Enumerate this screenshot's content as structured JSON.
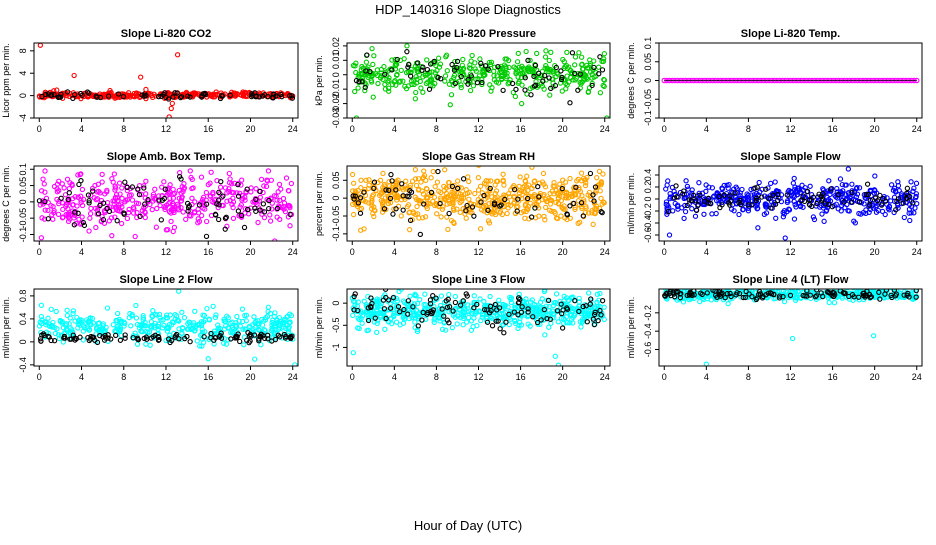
{
  "figure": {
    "title": "HDP_140316  Slope Diagnostics",
    "xlabel": "Hour of Day (UTC)"
  },
  "chart_data": [
    {
      "type": "scatter",
      "title": "Slope Li-820 CO2",
      "ylabel": "Licor ppm per min.",
      "color": "#ff0000",
      "xlim": [
        -0.5,
        24.5
      ],
      "ylim": [
        -4,
        9.4
      ],
      "xticks": [
        0,
        4,
        8,
        12,
        16,
        20,
        24
      ],
      "yticks": [
        -4,
        0,
        4,
        8
      ],
      "base": 0.1,
      "spread": 0.25,
      "black_base": 0,
      "black_spread": 0.3,
      "seed": 11,
      "n": 330,
      "nb": 70,
      "extra": [
        [
          0.1,
          9
        ],
        [
          3.3,
          3.6
        ],
        [
          9.6,
          3.3
        ],
        [
          13.1,
          7.3
        ],
        [
          10.1,
          1.1
        ],
        [
          12.5,
          -2.3
        ],
        [
          12.3,
          -3.8
        ],
        [
          12.6,
          -1.4
        ],
        [
          6.7,
          0.9
        ]
      ]
    },
    {
      "type": "scatter",
      "title": "Slope Li-820 Pressure",
      "ylabel": "kPa per min.",
      "color": "#00cc00",
      "xlim": [
        -0.5,
        24.5
      ],
      "ylim": [
        -0.03,
        0.022
      ],
      "xticks": [
        0,
        4,
        8,
        12,
        16,
        20,
        24
      ],
      "yticks": [
        -0.03,
        -0.02,
        -0.01,
        0,
        0.01,
        0.02
      ],
      "base": 0.001,
      "spread": 0.006,
      "black_base": 0,
      "black_spread": 0.007,
      "seed": 23,
      "n": 420,
      "nb": 70,
      "extra": [
        [
          0.4,
          -0.03
        ],
        [
          24.2,
          -0.03
        ],
        [
          5.2,
          0.02
        ],
        [
          16.1,
          -0.02
        ],
        [
          23.9,
          0.011
        ]
      ]
    },
    {
      "type": "scatter",
      "title": "Slope Li-820 Temp.",
      "ylabel": "degrees C per min.",
      "color": "#ff00ff",
      "xlim": [
        -0.5,
        24.5
      ],
      "ylim": [
        -0.1,
        0.1
      ],
      "xticks": [
        0,
        4,
        8,
        12,
        16,
        20,
        24
      ],
      "yticks": [
        -0.1,
        -0.05,
        0,
        0.05,
        0.1
      ],
      "base": 0,
      "spread": 0.0,
      "black_base": 0,
      "black_spread": 0.0,
      "seed": 5,
      "n": 95,
      "nb": 0,
      "line": true,
      "extra": []
    },
    {
      "type": "scatter",
      "title": "Slope Amb. Box Temp.",
      "ylabel": "degrees C per min.",
      "color": "#ff00ff",
      "xlim": [
        -0.5,
        24.5
      ],
      "ylim": [
        -0.12,
        0.11
      ],
      "xticks": [
        0,
        4,
        8,
        12,
        16,
        20,
        24
      ],
      "yticks": [
        -0.1,
        -0.05,
        0,
        0.05,
        0.1
      ],
      "base": 0.0,
      "spread": 0.04,
      "black_base": 0.0,
      "black_spread": 0.035,
      "seed": 31,
      "n": 420,
      "nb": 80,
      "extra": [
        [
          0.2,
          -0.11
        ],
        [
          22.3,
          -0.12
        ],
        [
          14.3,
          0.095
        ],
        [
          21.7,
          0.095
        ]
      ]
    },
    {
      "type": "scatter",
      "title": "Slope Gas Stream RH",
      "ylabel": "percent per min.",
      "color": "#ffa500",
      "xlim": [
        -0.5,
        24.5
      ],
      "ylim": [
        -0.12,
        0.09
      ],
      "xticks": [
        0,
        4,
        8,
        12,
        16,
        20,
        24
      ],
      "yticks": [
        -0.1,
        -0.05,
        0,
        0.05
      ],
      "base": 0.0,
      "spread": 0.032,
      "black_base": 0.0,
      "black_spread": 0.03,
      "seed": 47,
      "n": 560,
      "nb": 70,
      "extra": [
        [
          23.5,
          0.075
        ],
        [
          0.8,
          -0.09
        ],
        [
          21.8,
          0.07
        ]
      ]
    },
    {
      "type": "scatter",
      "title": "Slope Sample Flow",
      "ylabel": "ml/min per min.",
      "color": "#0000ff",
      "xlim": [
        -0.5,
        24.5
      ],
      "ylim": [
        -0.7,
        0.55
      ],
      "xticks": [
        0,
        4,
        8,
        12,
        16,
        20,
        24
      ],
      "yticks": [
        -0.6,
        -0.4,
        -0.2,
        0,
        0.2,
        0.4
      ],
      "base": 0.0,
      "spread": 0.14,
      "black_base": 0.0,
      "black_spread": 0.09,
      "seed": 53,
      "n": 460,
      "nb": 90,
      "extra": [
        [
          11.5,
          -0.65
        ],
        [
          17.5,
          0.5
        ],
        [
          0.5,
          -0.6
        ],
        [
          8.9,
          -0.48
        ]
      ]
    },
    {
      "type": "scatter",
      "title": "Slope Line 2 Flow",
      "ylabel": "ml/min per min.",
      "color": "#00ffff",
      "xlim": [
        -0.5,
        24.5
      ],
      "ylim": [
        -0.42,
        0.92
      ],
      "xticks": [
        0,
        4,
        8,
        12,
        16,
        20,
        24
      ],
      "yticks": [
        -0.4,
        0,
        0.4,
        0.8
      ],
      "base": 0.27,
      "spread": 0.14,
      "black_base": 0.08,
      "black_spread": 0.04,
      "seed": 61,
      "n": 420,
      "nb": 110,
      "extra": [
        [
          13.2,
          0.88
        ],
        [
          24.2,
          -0.4
        ],
        [
          20.4,
          -0.3
        ]
      ]
    },
    {
      "type": "scatter",
      "title": "Slope Line 3 Flow",
      "ylabel": "ml/min per min.",
      "color": "#00ffff",
      "xlim": [
        -0.5,
        24.5
      ],
      "ylim": [
        -1.42,
        0.32
      ],
      "xticks": [
        0,
        4,
        8,
        12,
        16,
        20,
        24
      ],
      "yticks": [
        -1,
        -0.5,
        0
      ],
      "base": -0.18,
      "spread": 0.17,
      "black_base": -0.15,
      "black_spread": 0.2,
      "seed": 71,
      "n": 560,
      "nb": 110,
      "extra": [
        [
          19.6,
          -1.4
        ],
        [
          19.3,
          -1.2
        ],
        [
          0.1,
          -1.12
        ],
        [
          18.3,
          0.3
        ],
        [
          23.3,
          0.2
        ]
      ]
    },
    {
      "type": "scatter",
      "title": "Slope Line 4 (LT) Flow",
      "ylabel": "ml/min per min.",
      "color": "#00ffff",
      "xlim": [
        -0.5,
        24.5
      ],
      "ylim": [
        -0.78,
        0.06
      ],
      "xticks": [
        0,
        4,
        8,
        12,
        16,
        20,
        24
      ],
      "yticks": [
        -0.6,
        -0.4,
        -0.2
      ],
      "base": 0.0,
      "spread": 0.03,
      "black_base": 0.0,
      "black_spread": 0.025,
      "seed": 83,
      "n": 420,
      "nb": 120,
      "extra": [
        [
          4.0,
          -0.76
        ],
        [
          12.2,
          -0.48
        ],
        [
          19.9,
          -0.45
        ]
      ]
    }
  ]
}
